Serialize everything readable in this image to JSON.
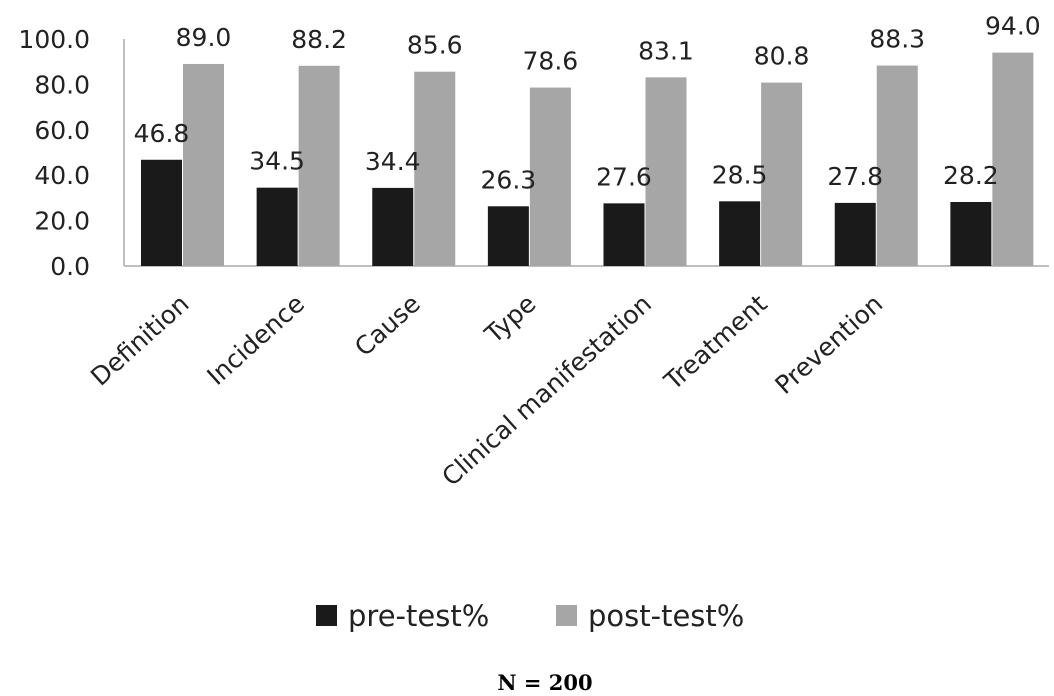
{
  "chart_data": {
    "type": "bar",
    "categories": [
      "Definition",
      "Incidence",
      "Cause",
      "Type",
      "Clinical manifestation",
      "Treatment",
      "Prevention",
      ""
    ],
    "series": [
      {
        "name": "pre-test%",
        "color": "#1a1a1a",
        "values": [
          46.8,
          34.5,
          34.4,
          26.3,
          27.6,
          28.5,
          27.8,
          28.2
        ]
      },
      {
        "name": "post-test%",
        "color": "#a6a6a6",
        "values": [
          89.0,
          88.2,
          85.6,
          78.6,
          83.1,
          80.8,
          88.3,
          94.0
        ]
      }
    ],
    "ylim": [
      0,
      100
    ],
    "yticks": [
      "0.0",
      "20.0",
      "40.0",
      "60.0",
      "80.0",
      "100.0"
    ],
    "legend": "bottom",
    "grid": false
  },
  "footnote": "N = 200"
}
